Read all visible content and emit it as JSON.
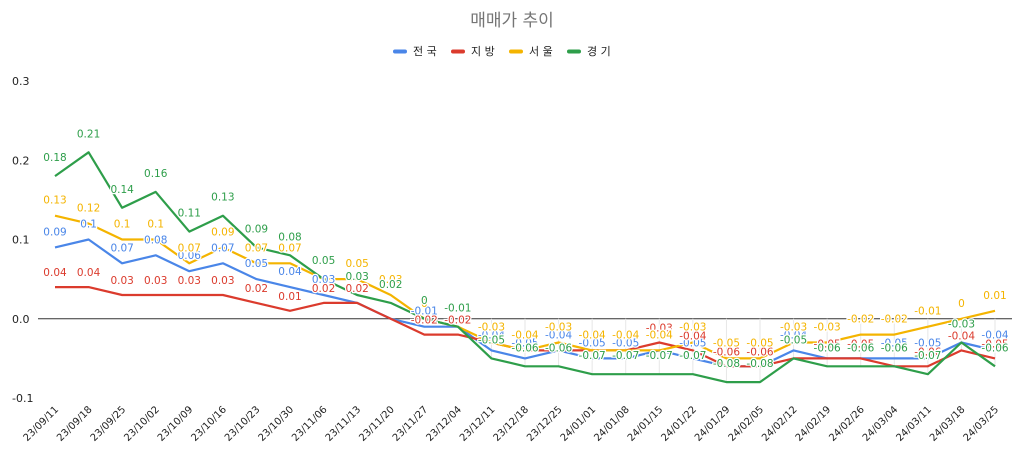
{
  "chart_data": {
    "type": "line",
    "title": "매매가 추이",
    "xlabel": "",
    "ylabel": "",
    "ylim": [
      -0.1,
      0.3
    ],
    "yticks": [
      "0.3",
      "0.2",
      "0.1",
      "0.0",
      "-0.1"
    ],
    "ytick_values": [
      0.3,
      0.2,
      0.1,
      0.0,
      -0.1
    ],
    "grid": false,
    "zero_line": true,
    "legend_position": "top",
    "categories": [
      "23/09/11",
      "23/09/18",
      "23/09/25",
      "23/10/02",
      "23/10/09",
      "23/10/16",
      "23/10/23",
      "23/10/30",
      "23/11/06",
      "23/11/13",
      "23/11/20",
      "23/11/27",
      "23/12/04",
      "23/12/11",
      "23/12/18",
      "23/12/25",
      "24/01/01",
      "24/01/08",
      "24/01/15",
      "24/01/22",
      "24/01/29",
      "24/02/05",
      "24/02/12",
      "24/02/19",
      "24/02/26",
      "24/03/04",
      "24/03/11",
      "24/03/18",
      "24/03/25"
    ],
    "series": [
      {
        "name": "전 국",
        "color": "#4a86e8",
        "values": [
          0.09,
          0.1,
          0.07,
          0.08,
          0.06,
          0.07,
          0.05,
          0.04,
          0.03,
          0.02,
          0,
          -0.01,
          -0.01,
          -0.04,
          -0.05,
          -0.04,
          -0.05,
          -0.05,
          -0.04,
          -0.05,
          -0.06,
          -0.06,
          -0.04,
          -0.05,
          -0.05,
          -0.05,
          -0.05,
          -0.03,
          -0.04
        ]
      },
      {
        "name": "지 방",
        "color": "#db3b2d",
        "values": [
          0.04,
          0.04,
          0.03,
          0.03,
          0.03,
          0.03,
          0.02,
          0.01,
          0.02,
          0.02,
          0,
          -0.02,
          -0.02,
          -0.03,
          -0.04,
          -0.04,
          -0.04,
          -0.04,
          -0.03,
          -0.04,
          -0.06,
          -0.06,
          -0.05,
          -0.05,
          -0.05,
          -0.06,
          -0.06,
          -0.04,
          -0.05
        ]
      },
      {
        "name": "서 울",
        "color": "#f4b400",
        "values": [
          0.13,
          0.12,
          0.1,
          0.1,
          0.07,
          0.09,
          0.07,
          0.07,
          0.05,
          0.05,
          0.03,
          0,
          -0.01,
          -0.03,
          -0.04,
          -0.03,
          -0.04,
          -0.04,
          -0.04,
          -0.03,
          -0.05,
          -0.05,
          -0.03,
          -0.03,
          -0.02,
          -0.02,
          -0.01,
          0,
          0.01
        ]
      },
      {
        "name": "경 기",
        "color": "#2e9e4a",
        "values": [
          0.18,
          0.21,
          0.14,
          0.16,
          0.11,
          0.13,
          0.09,
          0.08,
          0.05,
          0.03,
          0.02,
          0,
          -0.01,
          -0.05,
          -0.06,
          -0.06,
          -0.07,
          -0.07,
          -0.07,
          -0.07,
          -0.08,
          -0.08,
          -0.05,
          -0.06,
          -0.06,
          -0.06,
          -0.07,
          -0.03,
          -0.06
        ]
      }
    ],
    "data_labels": [
      [
        "0.09",
        "0.1",
        "0.07",
        "0.08",
        "0.06",
        "0.07",
        "0.05",
        "0.04",
        "0.03",
        "",
        "",
        "-0.01",
        "",
        "-0.04",
        "-0.05",
        "-0.04",
        "-0.05",
        "-0.05",
        "",
        "-0.05",
        "",
        "",
        "-0.04",
        "",
        "",
        "-0.05",
        "-0.05",
        "",
        "-0.04"
      ],
      [
        "0.04",
        "0.04",
        "0.03",
        "0.03",
        "0.03",
        "0.03",
        "0.02",
        "0.01",
        "0.02",
        "0.02",
        "",
        "-0.02",
        "-0.02",
        "",
        "",
        "",
        "",
        "",
        "-0.03",
        "-0.04",
        "-0.06",
        "-0.06",
        "",
        "-0.05",
        "-0.05",
        "",
        "-0.06",
        "-0.04",
        "-0.05"
      ],
      [
        "0.13",
        "0.12",
        "0.1",
        "0.1",
        "0.07",
        "0.09",
        "0.07",
        "0.07",
        "",
        "0.05",
        "0.03",
        "0",
        "",
        "-0.03",
        "-0.04",
        "-0.03",
        "-0.04",
        "-0.04",
        "-0.04",
        "-0.03",
        "-0.05",
        "-0.05",
        "-0.03",
        "-0.03",
        "-0.02",
        "-0.02",
        "-0.01",
        "0",
        "0.01"
      ],
      [
        "0.18",
        "0.21",
        "0.14",
        "0.16",
        "0.11",
        "0.13",
        "0.09",
        "0.08",
        "0.05",
        "0.03",
        "0.02",
        "0",
        "-0.01",
        "-0.05",
        "-0.06",
        "-0.06",
        "-0.07",
        "-0.07",
        "-0.07",
        "-0.07",
        "-0.08",
        "-0.08",
        "-0.05",
        "-0.06",
        "-0.06",
        "-0.06",
        "-0.07",
        "-0.03",
        "-0.06"
      ]
    ]
  }
}
